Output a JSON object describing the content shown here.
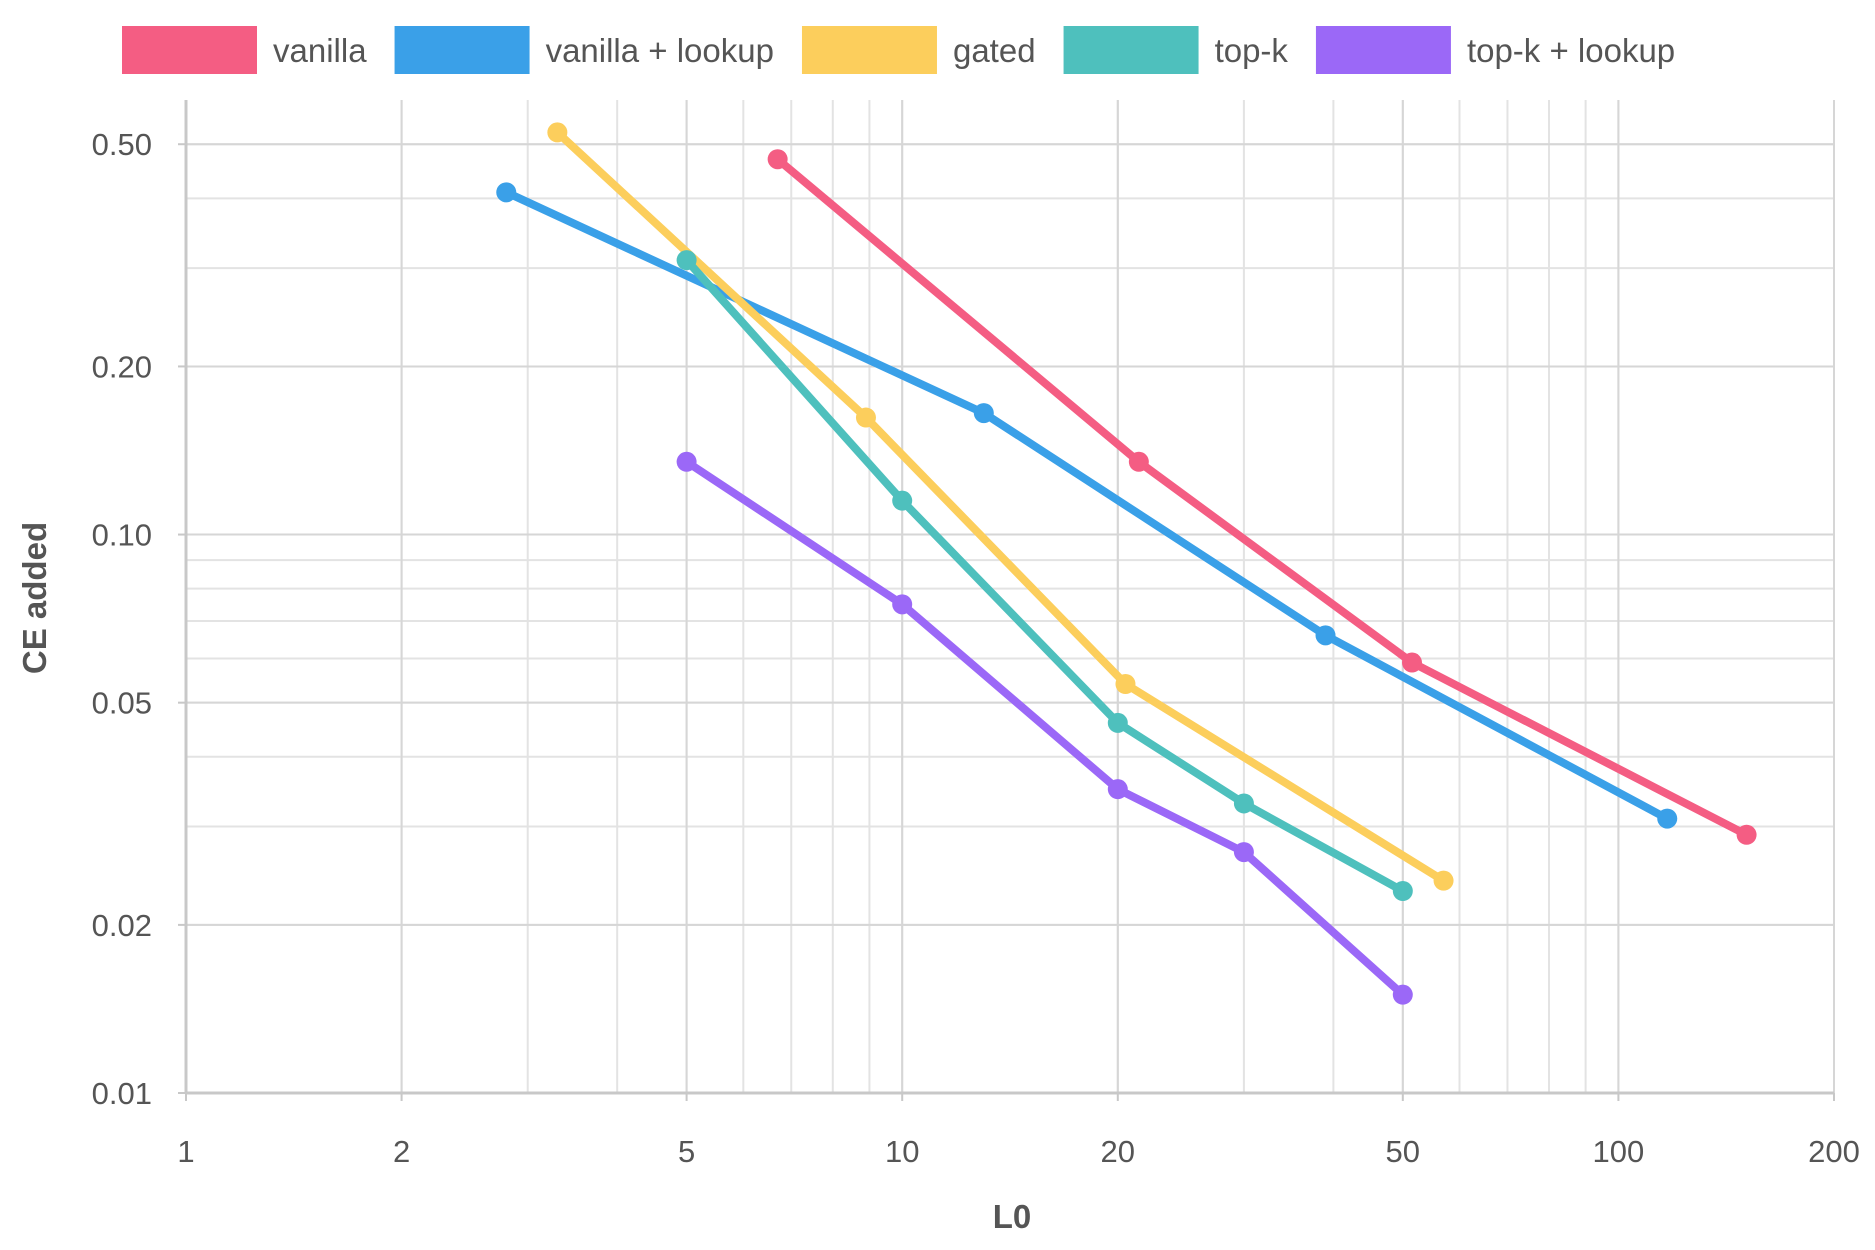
{
  "chart_data": {
    "type": "line",
    "title": "",
    "xlabel": "L0",
    "ylabel": "CE added",
    "xscale": "log",
    "yscale": "log",
    "xlim": [
      1,
      200
    ],
    "ylim": [
      0.01,
      0.6
    ],
    "xticks": [
      {
        "value": 1,
        "label": "1"
      },
      {
        "value": 2,
        "label": "2"
      },
      {
        "value": 5,
        "label": "5"
      },
      {
        "value": 10,
        "label": "10"
      },
      {
        "value": 20,
        "label": "20"
      },
      {
        "value": 50,
        "label": "50"
      },
      {
        "value": 100,
        "label": "100"
      },
      {
        "value": 200,
        "label": "200"
      }
    ],
    "yticks": [
      {
        "value": 0.01,
        "label": "0.01"
      },
      {
        "value": 0.02,
        "label": "0.02"
      },
      {
        "value": 0.05,
        "label": "0.05"
      },
      {
        "value": 0.1,
        "label": "0.10"
      },
      {
        "value": 0.2,
        "label": "0.20"
      },
      {
        "value": 0.5,
        "label": "0.50"
      }
    ],
    "grid": true,
    "legend_position": "top",
    "series": [
      {
        "name": "vanilla",
        "color": "#F45D83",
        "x": [
          6.7,
          21.4,
          51.5,
          151
        ],
        "y": [
          0.47,
          0.135,
          0.059,
          0.029
        ]
      },
      {
        "name": "vanilla + lookup",
        "color": "#3AA0E8",
        "x": [
          2.8,
          13,
          39,
          117
        ],
        "y": [
          0.41,
          0.165,
          0.066,
          0.031
        ]
      },
      {
        "name": "gated",
        "color": "#FCCE5C",
        "x": [
          3.3,
          8.9,
          20.5,
          57
        ],
        "y": [
          0.525,
          0.162,
          0.054,
          0.024
        ]
      },
      {
        "name": "top-k",
        "color": "#4EC0BD",
        "x": [
          5,
          10,
          20,
          30,
          50
        ],
        "y": [
          0.31,
          0.115,
          0.046,
          0.033,
          0.023
        ]
      },
      {
        "name": "top-k + lookup",
        "color": "#9B68F7",
        "x": [
          5,
          10,
          20,
          30,
          50
        ],
        "y": [
          0.135,
          0.075,
          0.035,
          0.027,
          0.015
        ]
      }
    ]
  }
}
